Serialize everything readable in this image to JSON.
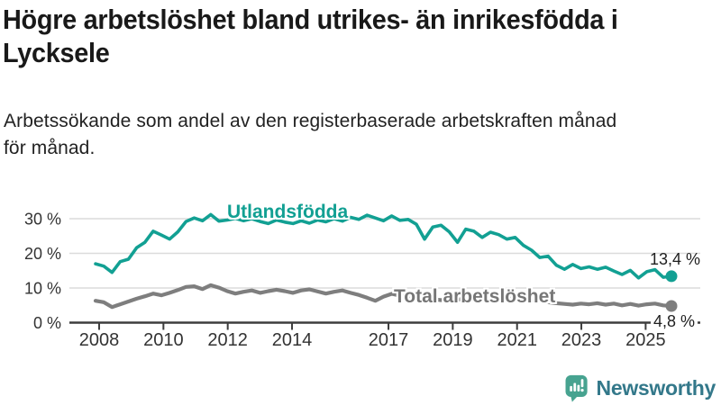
{
  "title": {
    "line1": "Högre arbetslöshet bland utrikes- än inrikesfödda i",
    "line2": "Lycksele"
  },
  "subtitle": {
    "line1": "Arbetssökande som andel av den registerbaserade arbetskraften månad",
    "line2": "för månad."
  },
  "chart_data": {
    "type": "line",
    "unit": "%",
    "x_start_year": 2008,
    "x_end_year": 2025.5,
    "points_per_year": 4,
    "ylim": [
      0,
      33
    ],
    "grid": "horizontal",
    "legend_position": "inline-labels",
    "yticks": [
      {
        "value": 0,
        "label": "0 %"
      },
      {
        "value": 10,
        "label": "10 %"
      },
      {
        "value": 20,
        "label": "20 %"
      },
      {
        "value": 30,
        "label": "30 %"
      }
    ],
    "xticks": [
      {
        "year": 2008,
        "label": "2008"
      },
      {
        "year": 2010,
        "label": "2010"
      },
      {
        "year": 2012,
        "label": "2012"
      },
      {
        "year": 2014,
        "label": "2014"
      },
      {
        "year": 2017,
        "label": "2017"
      },
      {
        "year": 2019,
        "label": "2019"
      },
      {
        "year": 2021,
        "label": "2021"
      },
      {
        "year": 2023,
        "label": "2023"
      },
      {
        "year": 2025,
        "label": "2025"
      }
    ],
    "series": [
      {
        "name": "Utlandsfödda",
        "color": "#12a093",
        "end_label": "13,4 %",
        "end_value": 13.4,
        "values": [
          17.0,
          16.3,
          14.5,
          17.6,
          18.3,
          21.6,
          23.2,
          26.4,
          25.3,
          24.1,
          26.2,
          29.2,
          30.2,
          29.4,
          31.2,
          29.3,
          29.6,
          30.1,
          29.4,
          30.0,
          29.2,
          28.6,
          29.6,
          29.0,
          28.6,
          29.4,
          28.7,
          29.6,
          29.1,
          30.0,
          29.3,
          30.4,
          29.8,
          31.0,
          30.2,
          29.4,
          30.8,
          29.5,
          29.8,
          28.4,
          24.1,
          27.6,
          28.1,
          26.2,
          23.2,
          27.0,
          26.4,
          24.6,
          26.1,
          25.4,
          24.1,
          24.6,
          22.3,
          20.9,
          18.8,
          19.2,
          16.6,
          15.4,
          16.8,
          15.6,
          16.1,
          15.4,
          16.0,
          14.9,
          13.9,
          15.1,
          12.9,
          14.7,
          15.3,
          13.1,
          13.4
        ]
      },
      {
        "name": "Total arbetslöshet",
        "color": "#7e7e7e",
        "end_label": "4,8 %",
        "end_value": 4.8,
        "values": [
          6.3,
          5.9,
          4.5,
          5.3,
          6.1,
          6.9,
          7.6,
          8.4,
          7.9,
          8.6,
          9.4,
          10.3,
          10.5,
          9.7,
          10.8,
          10.1,
          9.1,
          8.4,
          8.9,
          9.3,
          8.6,
          9.1,
          9.5,
          9.1,
          8.6,
          9.3,
          9.6,
          9.0,
          8.4,
          8.9,
          9.3,
          8.6,
          8.0,
          7.2,
          6.3,
          7.5,
          8.3,
          7.8,
          7.4,
          7.9,
          7.3,
          6.8,
          6.5,
          6.9,
          6.6,
          7.1,
          6.7,
          6.9,
          7.5,
          8.0,
          7.6,
          7.2,
          7.0,
          6.6,
          6.2,
          5.9,
          5.6,
          5.4,
          5.2,
          5.5,
          5.3,
          5.6,
          5.2,
          5.5,
          5.0,
          5.4,
          4.9,
          5.3,
          5.5,
          5.0,
          4.8
        ]
      }
    ],
    "colors": {
      "grid": "#dcdcdc",
      "axis": "#3d3d3d",
      "tick_label": "#333333",
      "value_label": "#1f1f1f"
    }
  },
  "logo": {
    "name": "Newsworthy",
    "icon": "bar-chart-bubble-icon",
    "icon_color": "#47a390",
    "text_color": "#33788a"
  }
}
